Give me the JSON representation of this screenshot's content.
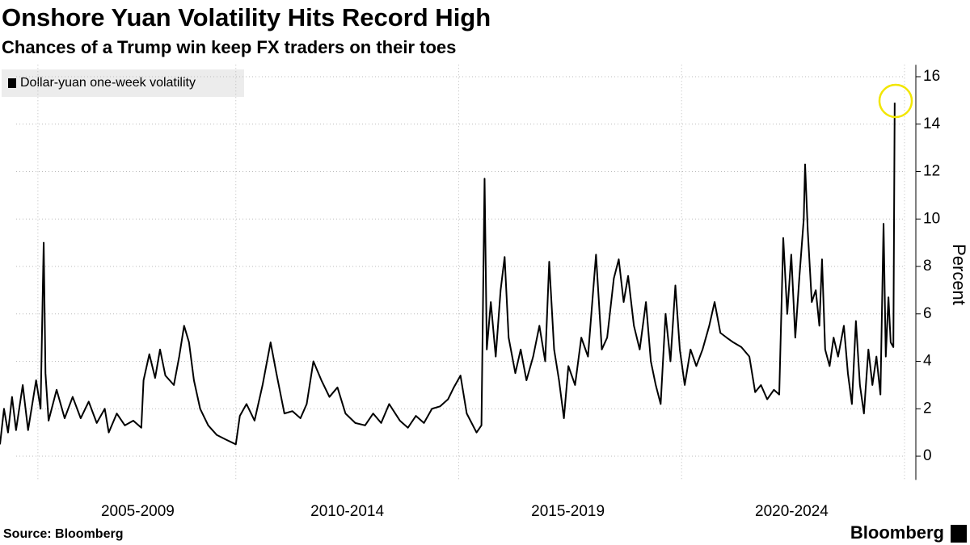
{
  "chart_data": {
    "type": "line",
    "title": "Onshore Yuan Volatility Hits Record High",
    "subtitle": "Chances of a Trump win keep FX traders on their toes",
    "source": "Source: Bloomberg",
    "brand": "Bloomberg",
    "y_axis_label": "Percent",
    "legend": "top-left",
    "grid": true,
    "xlim": [
      2004.71,
      2025.2
    ],
    "ylim": [
      -1,
      16.5
    ],
    "yticks": [
      0,
      2,
      4,
      6,
      8,
      10,
      12,
      14,
      16
    ],
    "xticks": [
      {
        "value": 2007.8,
        "label": "2005-2009"
      },
      {
        "value": 2012.5,
        "label": "2010-2014"
      },
      {
        "value": 2017.45,
        "label": "2015-2019"
      },
      {
        "value": 2022.47,
        "label": "2020-2024"
      }
    ],
    "xgrid": [
      2005.56,
      2010,
      2015,
      2020,
      2025
    ],
    "x": [
      2004.71,
      2004.8,
      2004.89,
      2004.98,
      2005.07,
      2005.22,
      2005.34,
      2005.52,
      2005.62,
      2005.69,
      2005.73,
      2005.8,
      2005.98,
      2006.16,
      2006.34,
      2006.52,
      2006.7,
      2006.88,
      2007.06,
      2007.15,
      2007.33,
      2007.51,
      2007.7,
      2007.88,
      2007.93,
      2008.06,
      2008.19,
      2008.3,
      2008.42,
      2008.61,
      2008.73,
      2008.84,
      2008.95,
      2009.06,
      2009.2,
      2009.38,
      2009.57,
      2009.78,
      2010.0,
      2010.09,
      2010.24,
      2010.42,
      2010.6,
      2010.78,
      2010.91,
      2011.09,
      2011.27,
      2011.45,
      2011.59,
      2011.74,
      2011.92,
      2012.1,
      2012.28,
      2012.46,
      2012.68,
      2012.9,
      2013.08,
      2013.26,
      2013.44,
      2013.68,
      2013.86,
      2014.04,
      2014.22,
      2014.4,
      2014.58,
      2014.76,
      2014.89,
      2015.04,
      2015.18,
      2015.4,
      2015.51,
      2015.58,
      2015.63,
      2015.72,
      2015.83,
      2015.94,
      2016.03,
      2016.12,
      2016.27,
      2016.39,
      2016.52,
      2016.67,
      2016.81,
      2016.94,
      2017.03,
      2017.14,
      2017.25,
      2017.36,
      2017.46,
      2017.61,
      2017.75,
      2017.9,
      2018.08,
      2018.21,
      2018.33,
      2018.48,
      2018.59,
      2018.7,
      2018.8,
      2018.93,
      2019.06,
      2019.2,
      2019.31,
      2019.42,
      2019.53,
      2019.64,
      2019.75,
      2019.86,
      2019.96,
      2020.07,
      2020.2,
      2020.33,
      2020.47,
      2020.62,
      2020.74,
      2020.87,
      2021.01,
      2021.16,
      2021.34,
      2021.52,
      2021.65,
      2021.78,
      2021.92,
      2022.07,
      2022.19,
      2022.28,
      2022.37,
      2022.46,
      2022.55,
      2022.64,
      2022.74,
      2022.77,
      2022.83,
      2022.92,
      2023.01,
      2023.09,
      2023.15,
      2023.22,
      2023.32,
      2023.41,
      2023.51,
      2023.64,
      2023.73,
      2023.82,
      2023.91,
      2024.0,
      2024.09,
      2024.19,
      2024.28,
      2024.37,
      2024.46,
      2024.53,
      2024.58,
      2024.64,
      2024.69,
      2024.75,
      2024.78
    ],
    "series": [
      {
        "name": "Dollar-yuan one-week volatility",
        "color": "#000000",
        "values": [
          0.5,
          2.0,
          1.0,
          2.5,
          1.1,
          3.0,
          1.1,
          3.2,
          2.0,
          9.0,
          3.5,
          1.5,
          2.8,
          1.6,
          2.5,
          1.6,
          2.3,
          1.4,
          2.0,
          1.0,
          1.8,
          1.3,
          1.5,
          1.2,
          3.2,
          4.3,
          3.3,
          4.5,
          3.4,
          3.0,
          4.2,
          5.5,
          4.8,
          3.2,
          2.0,
          1.3,
          0.9,
          0.7,
          0.5,
          1.7,
          2.2,
          1.5,
          3.0,
          4.8,
          3.5,
          1.8,
          1.9,
          1.6,
          2.2,
          4.0,
          3.2,
          2.5,
          2.9,
          1.8,
          1.4,
          1.3,
          1.8,
          1.4,
          2.2,
          1.5,
          1.2,
          1.7,
          1.4,
          2.0,
          2.1,
          2.4,
          2.9,
          3.4,
          1.8,
          1.0,
          1.3,
          11.7,
          4.5,
          6.5,
          4.2,
          7.0,
          8.4,
          5.0,
          3.5,
          4.5,
          3.2,
          4.2,
          5.5,
          4.0,
          8.2,
          4.5,
          3.2,
          1.6,
          3.8,
          3.0,
          5.0,
          4.2,
          8.5,
          4.5,
          5.0,
          7.5,
          8.3,
          6.5,
          7.6,
          5.5,
          4.5,
          6.5,
          4.0,
          3.0,
          2.2,
          6.0,
          4.0,
          7.2,
          4.5,
          3.0,
          4.5,
          3.8,
          4.5,
          5.5,
          6.5,
          5.2,
          5.0,
          4.8,
          4.6,
          4.2,
          2.7,
          3.0,
          2.4,
          2.8,
          2.6,
          9.2,
          6.0,
          8.5,
          5.0,
          7.5,
          10.0,
          12.3,
          9.5,
          6.5,
          7.0,
          5.5,
          8.3,
          4.5,
          3.8,
          5.0,
          4.2,
          5.5,
          3.5,
          2.2,
          5.7,
          3.0,
          1.8,
          4.5,
          3.0,
          4.2,
          2.6,
          9.8,
          4.2,
          6.7,
          4.8,
          4.6,
          14.9
        ]
      }
    ]
  }
}
